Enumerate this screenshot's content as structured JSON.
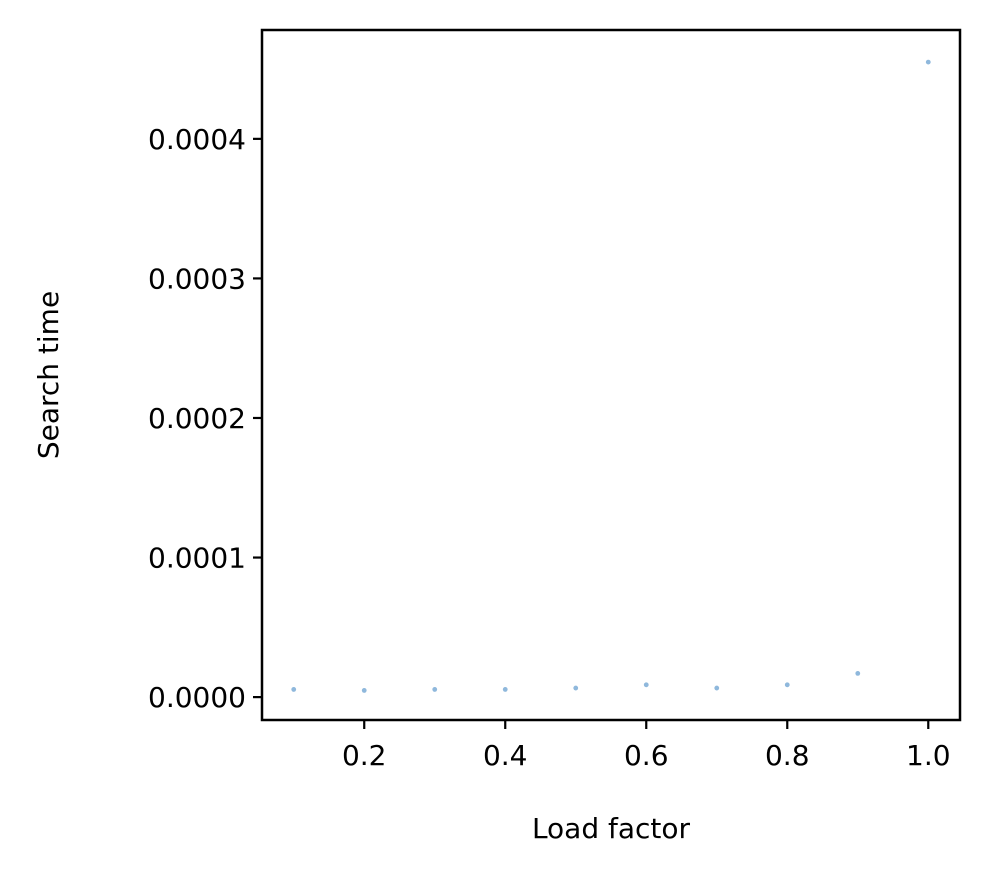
{
  "chart_data": {
    "type": "scatter",
    "title": "",
    "xlabel": "Load factor",
    "ylabel": "Search time",
    "xlim": [
      0.055,
      1.045
    ],
    "ylim": [
      -1.64e-05,
      0.000478
    ],
    "xticks": [
      0.2,
      0.4,
      0.6,
      0.8,
      1.0
    ],
    "xtick_labels": [
      "0.2",
      "0.4",
      "0.6",
      "0.8",
      "1.0"
    ],
    "yticks": [
      0.0,
      0.0001,
      0.0002,
      0.0003,
      0.0004
    ],
    "ytick_labels": [
      "0.0000",
      "0.0001",
      "0.0002",
      "0.0003",
      "0.0004"
    ],
    "grid": false,
    "marker_color": "#8fb8dc",
    "series": [
      {
        "x": [
          0.1,
          0.2,
          0.3,
          0.4,
          0.5,
          0.6,
          0.7,
          0.8,
          0.9,
          1.0
        ],
        "y": [
          5.5e-06,
          4.8e-06,
          5.5e-06,
          5.5e-06,
          6.5e-06,
          8.8e-06,
          6.5e-06,
          8.8e-06,
          1.7e-05,
          0.000455
        ]
      }
    ]
  }
}
